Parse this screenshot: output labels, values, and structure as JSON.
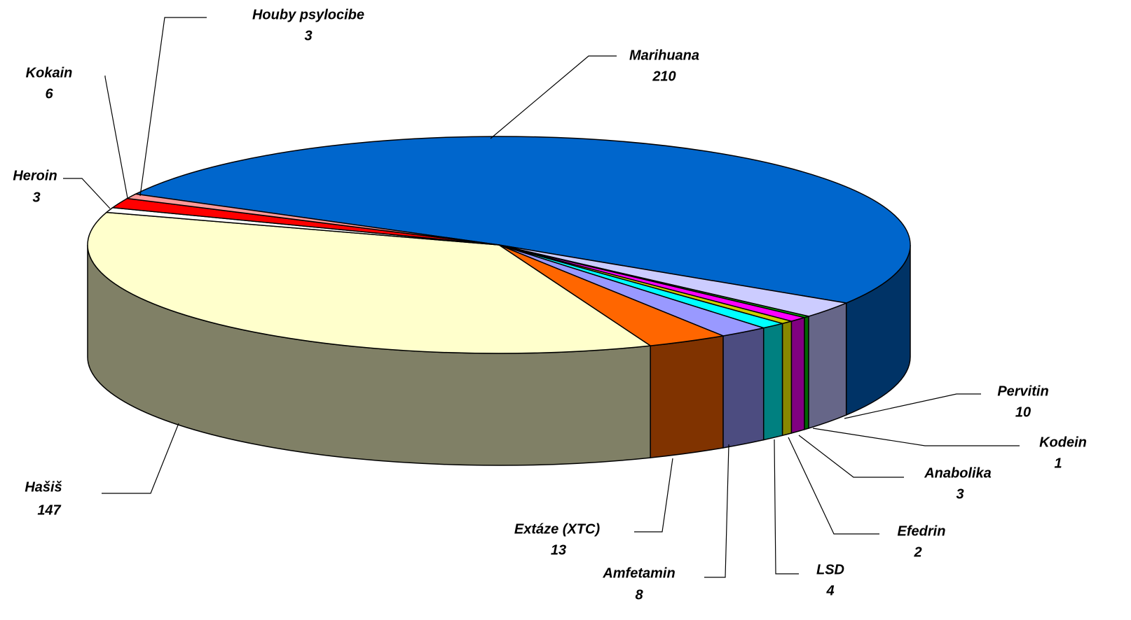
{
  "chart_data": {
    "type": "pie",
    "categories": [
      "Marihuana",
      "Pervitin",
      "Kodein",
      "Anabolika",
      "Efedrin",
      "LSD",
      "Amfetamin",
      "Extáze (XTC)",
      "Hašiš",
      "Heroin",
      "Kokain",
      "Houby psylocibe"
    ],
    "values": [
      210,
      10,
      1,
      3,
      2,
      4,
      8,
      13,
      147,
      3,
      6,
      3
    ],
    "colors": [
      "#0066cc",
      "#ccccff",
      "#00aa00",
      "#ff00ff",
      "#cccc00",
      "#00ffff",
      "#9999ff",
      "#ff6600",
      "#ffffcc",
      "#ffffff",
      "#ff0000",
      "#ff9999"
    ],
    "side_colors": [
      "#003366",
      "#666688",
      "#006600",
      "#800080",
      "#888800",
      "#008080",
      "#4c4c80",
      "#803300",
      "#808066",
      "#cccccc",
      "#aa0000",
      "#cc6666"
    ]
  }
}
